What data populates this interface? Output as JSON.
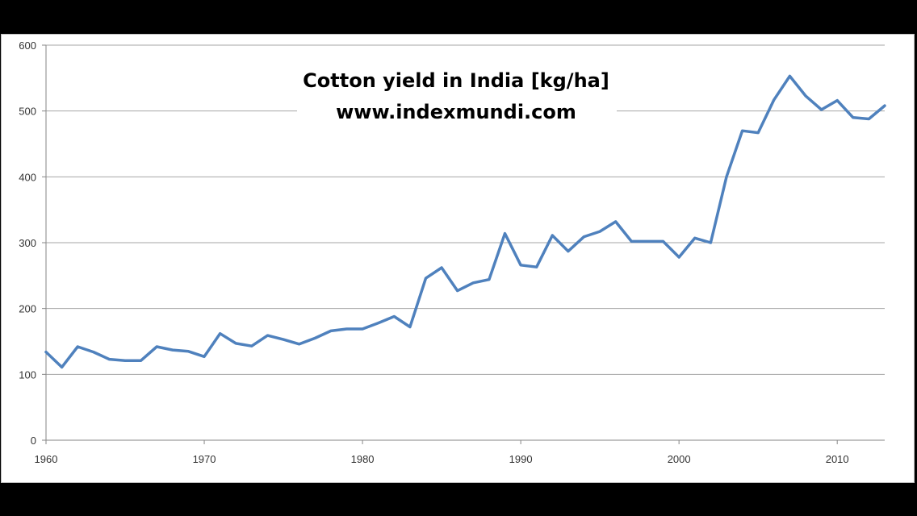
{
  "chart_data": {
    "type": "line",
    "title": "Cotton yield in India [kg/ha]",
    "subtitle": "www.indexmundi.com",
    "xlabel": "",
    "ylabel": "",
    "xlim": [
      1960,
      2013
    ],
    "ylim": [
      0,
      600
    ],
    "x_ticks": [
      "1960",
      "1970",
      "1980",
      "1990",
      "2000",
      "2010"
    ],
    "y_ticks": [
      "0",
      "100",
      "200",
      "300",
      "400",
      "500",
      "600"
    ],
    "grid": "horizontal",
    "legend": "none",
    "colors": {
      "line": "#4f81bd",
      "grid": "#a6a6a6",
      "axis": "#868686",
      "background": "#ffffff",
      "frame": "#000000"
    },
    "series": [
      {
        "x": [
          1960,
          1961,
          1962,
          1963,
          1964,
          1965,
          1966,
          1967,
          1968,
          1969,
          1970,
          1971,
          1972,
          1973,
          1974,
          1975,
          1976,
          1977,
          1978,
          1979,
          1980,
          1981,
          1982,
          1983,
          1984,
          1985,
          1986,
          1987,
          1988,
          1989,
          1990,
          1991,
          1992,
          1993,
          1994,
          1995,
          1996,
          1997,
          1998,
          1999,
          2000,
          2001,
          2002,
          2003,
          2004,
          2005,
          2006,
          2007,
          2008,
          2009,
          2010,
          2011,
          2012,
          2013
        ],
        "values": [
          134,
          111,
          142,
          134,
          123,
          121,
          121,
          142,
          137,
          135,
          127,
          162,
          147,
          143,
          159,
          153,
          146,
          155,
          166,
          169,
          169,
          178,
          188,
          172,
          246,
          262,
          227,
          239,
          244,
          314,
          266,
          263,
          311,
          287,
          309,
          317,
          332,
          302,
          302,
          302,
          278,
          307,
          300,
          400,
          470,
          467,
          517,
          553,
          523,
          502,
          516,
          490,
          488,
          508
        ]
      }
    ]
  }
}
